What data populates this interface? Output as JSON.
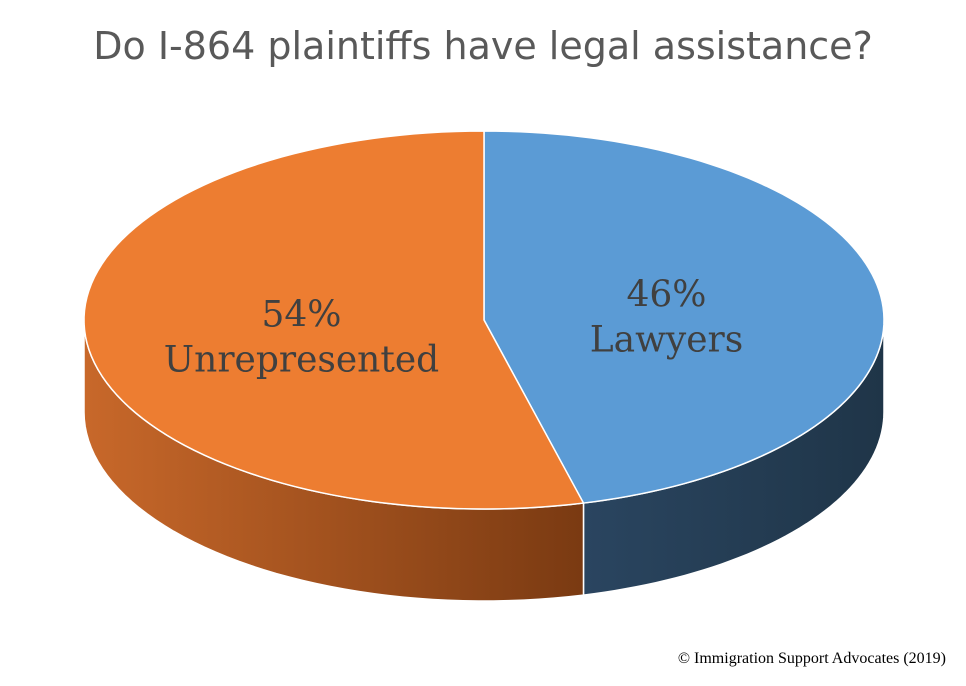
{
  "chart_data": {
    "type": "pie",
    "title": "Do I-864 plaintiffs have legal assistance?",
    "three_d": true,
    "slices": [
      {
        "name": "Lawyers",
        "value": 46,
        "label_lines": [
          "46%",
          "Lawyers"
        ],
        "color": "#5B9BD5",
        "side_color": "#253D55"
      },
      {
        "name": "Unrepresented",
        "value": 54,
        "label_lines": [
          "54%",
          "Unrepresented"
        ],
        "color": "#ED7D31",
        "side_color": "#9A4E1E"
      }
    ],
    "legend": "none"
  },
  "footer": {
    "copyright": "© Immigration Support Advocates (2019)"
  }
}
